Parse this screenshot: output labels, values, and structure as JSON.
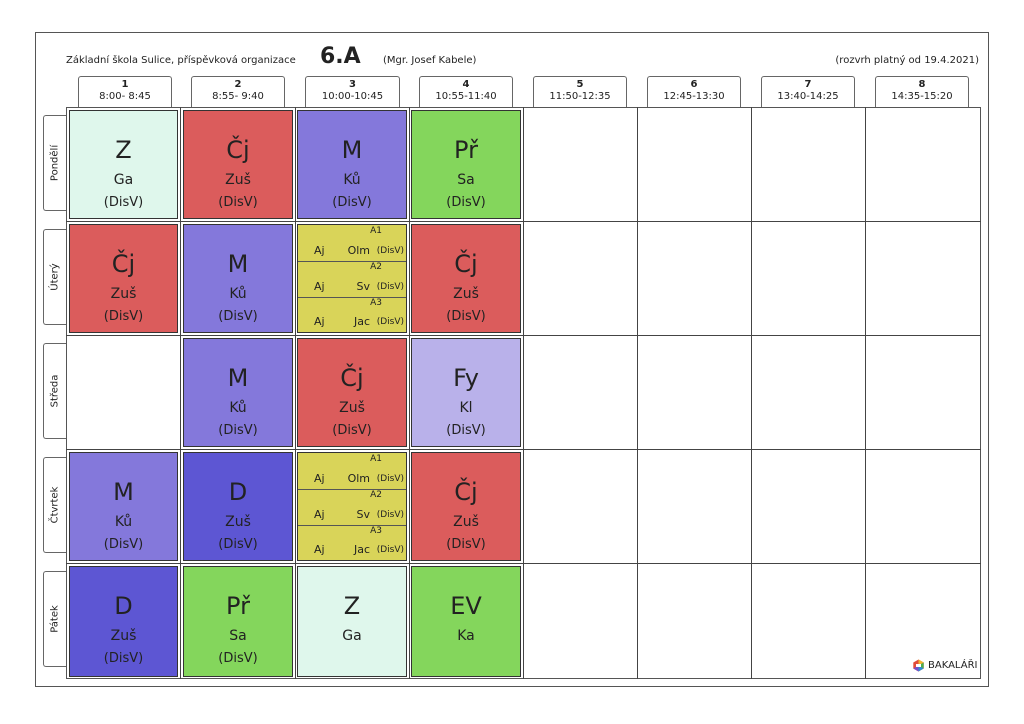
{
  "header": {
    "school": "Základní škola Sulice, příspěvková organizace",
    "class": "6.A",
    "teacher": "(Mgr. Josef Kabele)",
    "valid": "(rozvrh platný od 19.4.2021)"
  },
  "periods": [
    {
      "num": "1",
      "time": "8:00- 8:45"
    },
    {
      "num": "2",
      "time": "8:55- 9:40"
    },
    {
      "num": "3",
      "time": "10:00-10:45"
    },
    {
      "num": "4",
      "time": "10:55-11:40"
    },
    {
      "num": "5",
      "time": "11:50-12:35"
    },
    {
      "num": "6",
      "time": "12:45-13:30"
    },
    {
      "num": "7",
      "time": "13:40-14:25"
    },
    {
      "num": "8",
      "time": "14:35-15:20"
    }
  ],
  "days": [
    "Pondělí",
    "Úterý",
    "Středa",
    "Čtvrtek",
    "Pátek"
  ],
  "colors": {
    "z": "#dff7ec",
    "cj": "#db5c5c",
    "m": "#8478db",
    "pr": "#84d65c",
    "fy": "#b9b1ea",
    "d": "#5d56d3",
    "ev": "#84d65c",
    "group": "#d9d459"
  },
  "lessons": {
    "mon1": {
      "subject": "Z",
      "teacher": "Ga",
      "room": "(DisV)"
    },
    "mon2": {
      "subject": "Čj",
      "teacher": "Zuš",
      "room": "(DisV)"
    },
    "mon3": {
      "subject": "M",
      "teacher": "Ků",
      "room": "(DisV)"
    },
    "mon4": {
      "subject": "Př",
      "teacher": "Sa",
      "room": "(DisV)"
    },
    "tue1": {
      "subject": "Čj",
      "teacher": "Zuš",
      "room": "(DisV)"
    },
    "tue2": {
      "subject": "M",
      "teacher": "Ků",
      "room": "(DisV)"
    },
    "tue4": {
      "subject": "Čj",
      "teacher": "Zuš",
      "room": "(DisV)"
    },
    "wed2": {
      "subject": "M",
      "teacher": "Ků",
      "room": "(DisV)"
    },
    "wed3": {
      "subject": "Čj",
      "teacher": "Zuš",
      "room": "(DisV)"
    },
    "wed4": {
      "subject": "Fy",
      "teacher": "Kl",
      "room": "(DisV)"
    },
    "thu1": {
      "subject": "M",
      "teacher": "Ků",
      "room": "(DisV)"
    },
    "thu2": {
      "subject": "D",
      "teacher": "Zuš",
      "room": "(DisV)"
    },
    "thu4": {
      "subject": "Čj",
      "teacher": "Zuš",
      "room": "(DisV)"
    },
    "fri1": {
      "subject": "D",
      "teacher": "Zuš",
      "room": "(DisV)"
    },
    "fri2": {
      "subject": "Př",
      "teacher": "Sa",
      "room": "(DisV)"
    },
    "fri3": {
      "subject": "Z",
      "teacher": "Ga"
    },
    "fri4": {
      "subject": "EV",
      "teacher": "Ka"
    }
  },
  "groups": {
    "tue3": [
      {
        "group": "A1",
        "subject": "Aj",
        "teacher": "Olm",
        "room": "(DisV)"
      },
      {
        "group": "A2",
        "subject": "Aj",
        "teacher": "Sv",
        "room": "(DisV)"
      },
      {
        "group": "A3",
        "subject": "Aj",
        "teacher": "Jac",
        "room": "(DisV)"
      }
    ],
    "thu3": [
      {
        "group": "A1",
        "subject": "Aj",
        "teacher": "Olm",
        "room": "(DisV)"
      },
      {
        "group": "A2",
        "subject": "Aj",
        "teacher": "Sv",
        "room": "(DisV)"
      },
      {
        "group": "A3",
        "subject": "Aj",
        "teacher": "Jac",
        "room": "(DisV)"
      }
    ]
  },
  "logo": {
    "text": "BAKALÁŘI",
    "icon": "bakalari-logo-icon"
  }
}
